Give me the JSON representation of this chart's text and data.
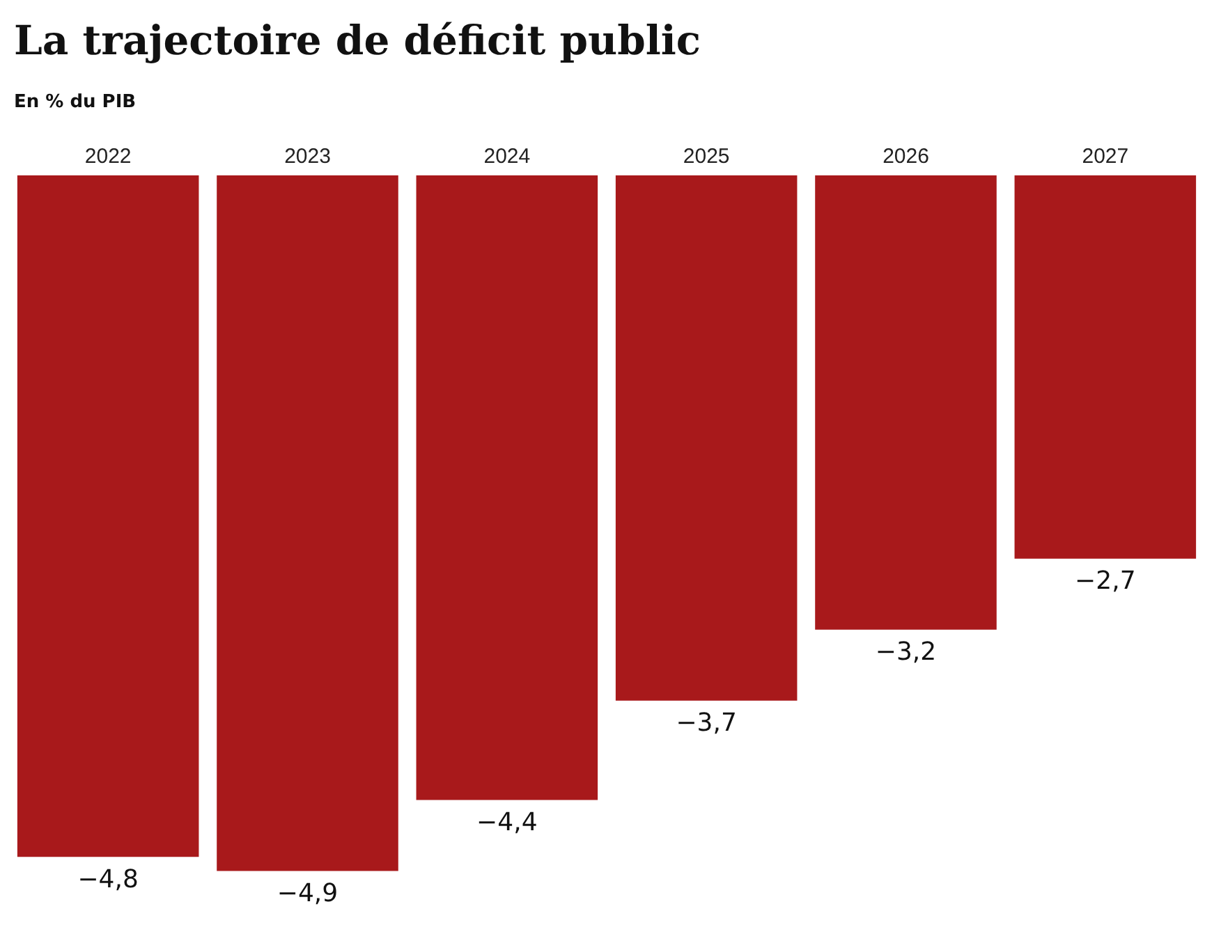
{
  "chart_data": {
    "type": "bar",
    "title": "La trajectoire de déficit public",
    "subtitle": "En % du PIB",
    "categories": [
      "2022",
      "2023",
      "2024",
      "2025",
      "2026",
      "2027"
    ],
    "values": [
      -4.8,
      -4.9,
      -4.4,
      -3.7,
      -3.2,
      -2.7
    ],
    "value_labels": [
      "−4,8",
      "−4,9",
      "−4,4",
      "−3,7",
      "−3,2",
      "−2,7"
    ],
    "color": "#a8191b",
    "tick_labels": "x",
    "grid": false,
    "legend": false
  }
}
